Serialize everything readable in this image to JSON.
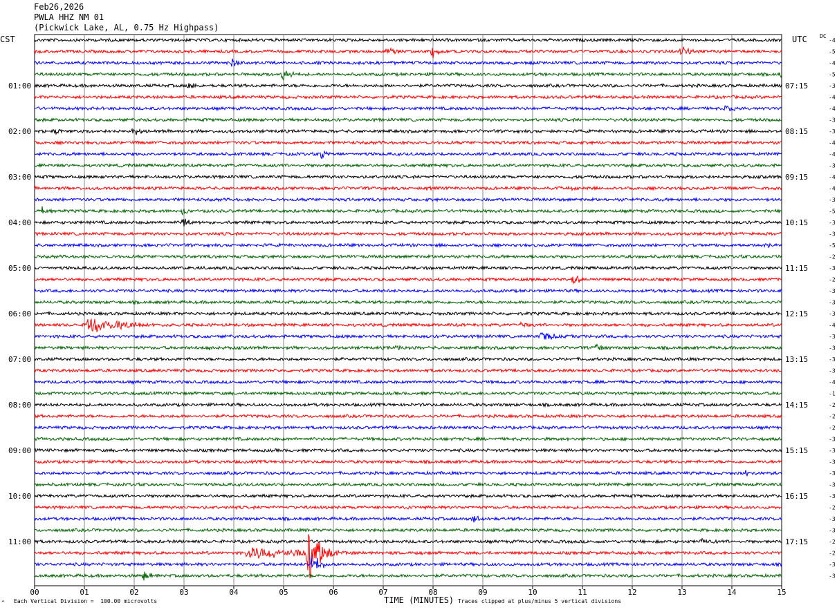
{
  "header": {
    "date": "Feb26,2026",
    "station": "PWLA HHZ NM 01",
    "location": "(Pickwick Lake, AL, 0.75 Hz Highpass)"
  },
  "left_timezone": "CST",
  "right_timezone": "UTC",
  "dc_label": "DC",
  "footer": {
    "corner_mark": "^",
    "scale_note": "Each Vertical Division =  100.00 microvolts",
    "x_axis_title": "TIME (MINUTES)",
    "clip_note": "Traces clipped at plus/minus 5 vertical divisions"
  },
  "colors": {
    "black": "#000000",
    "red": "#ff0000",
    "blue": "#0000ff",
    "green": "#006400",
    "grid": "#888888"
  },
  "chart_data": {
    "type": "line",
    "title": "PWLA HHZ NM 01",
    "xlabel": "TIME (MINUTES)",
    "xlim": [
      0,
      15
    ],
    "x_ticks": [
      "00",
      "01",
      "02",
      "03",
      "04",
      "05",
      "06",
      "07",
      "08",
      "09",
      "10",
      "11",
      "12",
      "13",
      "14",
      "15"
    ],
    "trace_count": 48,
    "trace_minutes": 15,
    "trace_color_cycle": [
      "black",
      "red",
      "blue",
      "green"
    ],
    "cst_labels": [
      "01:00",
      "02:00",
      "03:00",
      "04:00",
      "05:00",
      "06:00",
      "07:00",
      "08:00",
      "09:00",
      "10:00",
      "11:00"
    ],
    "utc_labels": [
      "07:15",
      "08:15",
      "09:15",
      "10:15",
      "11:15",
      "12:15",
      "13:15",
      "14:15",
      "15:15",
      "16:15",
      "17:15"
    ],
    "dc_offsets": [
      "-4",
      "-5",
      "-4",
      "-5",
      "-3",
      "-4",
      "-4",
      "-3",
      "-3",
      "-4",
      "-4",
      "-3",
      "-4",
      "-4",
      "-3",
      "-5",
      "-3",
      "-3",
      "-5",
      "-2",
      "-3",
      "-2",
      "-3",
      "-3",
      "-3",
      "-4",
      "-3",
      "-3",
      "-3",
      "-3",
      "-4",
      "-1",
      "-2",
      "-2",
      "-2",
      "-3",
      "-3",
      "-3",
      "-3",
      "-3",
      "-3",
      "-2",
      "-3",
      "-3",
      "-2",
      "-2",
      "-3",
      "-3"
    ],
    "amplitude_units": "microvolts per vertical division",
    "microvolts_per_division": 100.0,
    "clip_divisions": 5,
    "events": [
      {
        "trace": 1,
        "minute": 7.1,
        "amp": 9,
        "dur": 0.5
      },
      {
        "trace": 1,
        "minute": 8.0,
        "amp": 11,
        "dur": 0.3
      },
      {
        "trace": 1,
        "minute": 13.0,
        "amp": 9,
        "dur": 0.5
      },
      {
        "trace": 2,
        "minute": 4.0,
        "amp": 8,
        "dur": 0.3
      },
      {
        "trace": 3,
        "minute": 5.0,
        "amp": 11,
        "dur": 0.5
      },
      {
        "trace": 3,
        "minute": 15.0,
        "amp": 7,
        "dur": 0.3
      },
      {
        "trace": 4,
        "minute": 3.1,
        "amp": 6,
        "dur": 0.5
      },
      {
        "trace": 6,
        "minute": 13.9,
        "amp": 7,
        "dur": 0.6
      },
      {
        "trace": 8,
        "minute": 0.4,
        "amp": 6,
        "dur": 0.6
      },
      {
        "trace": 8,
        "minute": 2.0,
        "amp": 7,
        "dur": 0.4
      },
      {
        "trace": 10,
        "minute": 5.8,
        "amp": 9,
        "dur": 0.5
      },
      {
        "trace": 13,
        "minute": 7.9,
        "amp": 6,
        "dur": 0.4
      },
      {
        "trace": 13,
        "minute": 10.8,
        "amp": 5,
        "dur": 0.4
      },
      {
        "trace": 15,
        "minute": 0.2,
        "amp": 9,
        "dur": 0.4
      },
      {
        "trace": 15,
        "minute": 3.0,
        "amp": 6,
        "dur": 0.4
      },
      {
        "trace": 16,
        "minute": 3.0,
        "amp": 8,
        "dur": 0.5
      },
      {
        "trace": 18,
        "minute": 14.7,
        "amp": 5,
        "dur": 0.4
      },
      {
        "trace": 21,
        "minute": 10.8,
        "amp": 9,
        "dur": 0.5
      },
      {
        "trace": 25,
        "minute": 1.1,
        "amp": 14,
        "dur": 1.8
      },
      {
        "trace": 25,
        "minute": 9.8,
        "amp": 6,
        "dur": 0.2
      },
      {
        "trace": 26,
        "minute": 10.2,
        "amp": 8,
        "dur": 0.8
      },
      {
        "trace": 27,
        "minute": 3.5,
        "amp": 6,
        "dur": 0.3
      },
      {
        "trace": 27,
        "minute": 7.3,
        "amp": 7,
        "dur": 0.3
      },
      {
        "trace": 27,
        "minute": 11.3,
        "amp": 7,
        "dur": 0.3
      },
      {
        "trace": 38,
        "minute": 14.3,
        "amp": 7,
        "dur": 0.5
      },
      {
        "trace": 41,
        "minute": 7.4,
        "amp": 6,
        "dur": 0.3
      },
      {
        "trace": 42,
        "minute": 8.8,
        "amp": 9,
        "dur": 0.4
      },
      {
        "trace": 44,
        "minute": 13.4,
        "amp": 6,
        "dur": 0.3
      },
      {
        "trace": 45,
        "minute": 4.3,
        "amp": 11,
        "dur": 3.5
      },
      {
        "trace": 45,
        "minute": 5.5,
        "amp": 45,
        "dur": 0.6
      },
      {
        "trace": 46,
        "minute": 5.6,
        "amp": 18,
        "dur": 0.4
      },
      {
        "trace": 47,
        "minute": 2.2,
        "amp": 8,
        "dur": 0.5
      }
    ]
  }
}
